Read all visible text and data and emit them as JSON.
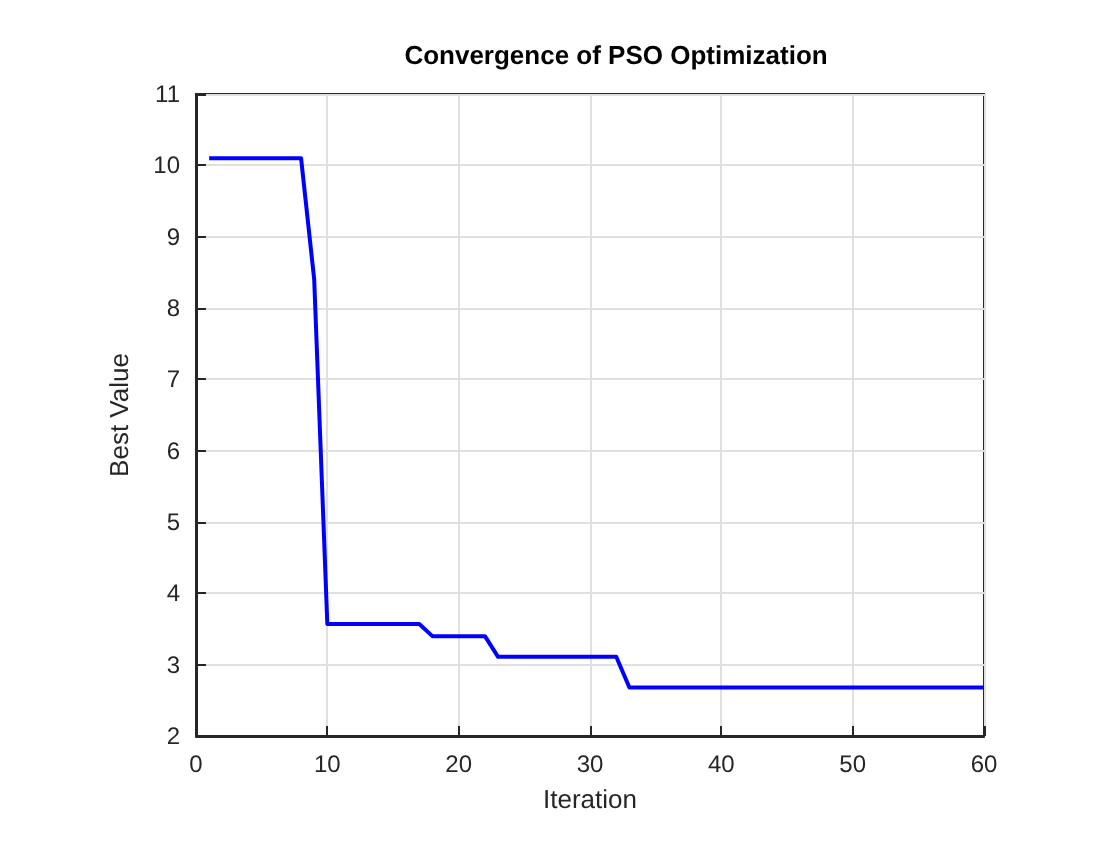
{
  "chart_data": {
    "type": "line",
    "title": "Convergence of PSO Optimization",
    "xlabel": "Iteration",
    "ylabel": "Best Value",
    "x": [
      1,
      2,
      3,
      4,
      5,
      6,
      7,
      8,
      9,
      10,
      11,
      12,
      13,
      14,
      15,
      16,
      17,
      18,
      19,
      20,
      21,
      22,
      23,
      24,
      25,
      26,
      27,
      28,
      29,
      30,
      31,
      32,
      33,
      34,
      35,
      36,
      37,
      38,
      39,
      40,
      41,
      42,
      43,
      44,
      45,
      46,
      47,
      48,
      49,
      50,
      51,
      52,
      53,
      54,
      55,
      56,
      57,
      58,
      59,
      60
    ],
    "series": [
      {
        "color": "#0000ff",
        "values": [
          10.1,
          10.1,
          10.1,
          10.1,
          10.1,
          10.1,
          10.1,
          10.1,
          8.4,
          3.57,
          3.57,
          3.57,
          3.57,
          3.57,
          3.57,
          3.57,
          3.57,
          3.4,
          3.4,
          3.4,
          3.4,
          3.4,
          3.11,
          3.11,
          3.11,
          3.11,
          3.11,
          3.11,
          3.11,
          3.11,
          3.11,
          3.11,
          2.68,
          2.68,
          2.68,
          2.68,
          2.68,
          2.68,
          2.68,
          2.68,
          2.68,
          2.68,
          2.68,
          2.68,
          2.68,
          2.68,
          2.68,
          2.68,
          2.68,
          2.68,
          2.68,
          2.68,
          2.68,
          2.68,
          2.68,
          2.68,
          2.68,
          2.68,
          2.68,
          2.68
        ]
      }
    ],
    "xlim": [
      0,
      60
    ],
    "xticks": [
      0,
      10,
      20,
      30,
      40,
      50,
      60
    ],
    "ylim": [
      2,
      11
    ],
    "yticks": [
      2,
      3,
      4,
      5,
      6,
      7,
      8,
      9,
      10,
      11
    ],
    "grid": true,
    "line_style": "solid"
  }
}
